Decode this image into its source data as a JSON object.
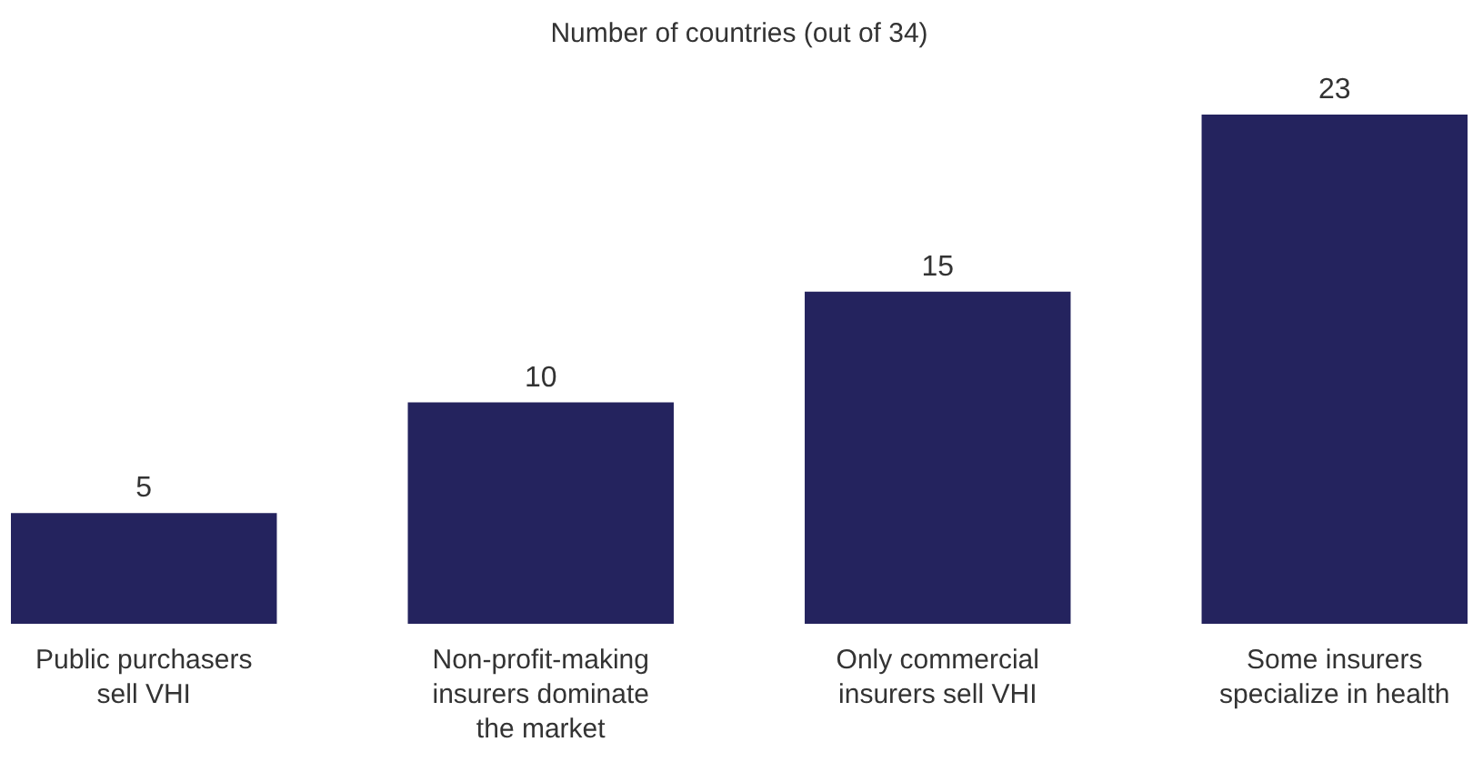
{
  "chart_data": {
    "type": "bar",
    "title": "Number of countries (out of 34)",
    "categories": [
      "Public purchasers sell VHI",
      "Non-profit-making insurers dominate the market",
      "Only commercial insurers sell VHI",
      "Some insurers specialize in health"
    ],
    "values": [
      5,
      10,
      15,
      23
    ],
    "color": "#24235e",
    "data_labels": true
  }
}
